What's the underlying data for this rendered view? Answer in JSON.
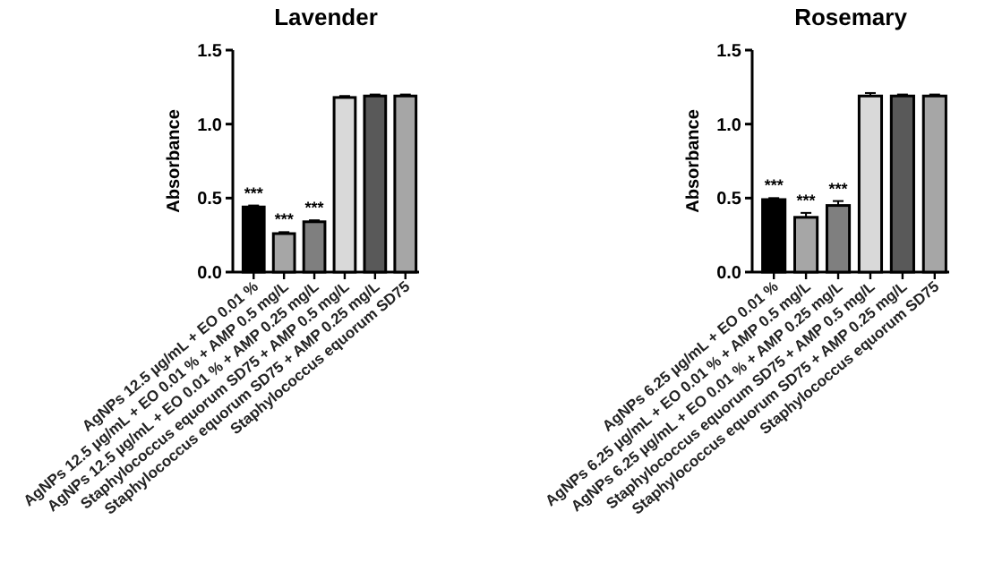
{
  "chart_data": [
    {
      "type": "bar",
      "title": "Lavender",
      "ylabel": "Absorbance",
      "categories": [
        "AgNPs 12.5 µg/mL + EO 0.01 %",
        "AgNPs 12.5 µg/mL + EO 0.01 % + AMP 0.5 mg/L",
        "AgNPs 12.5 µg/mL + EO 0.01 % + AMP 0.25 mg/L",
        "Staphylococcus equorum SD75 + AMP 0.5 mg/L",
        "Staphylococcus equorum SD75 + AMP 0.25 mg/L",
        "Staphylococcus equorum SD75"
      ],
      "values": [
        0.44,
        0.26,
        0.34,
        1.18,
        1.19,
        1.19
      ],
      "errors": [
        0.01,
        0.01,
        0.01,
        0.01,
        0.01,
        0.01
      ],
      "colors": [
        "#000000",
        "#a6a6a6",
        "#7f7f7f",
        "#d9d9d9",
        "#595959",
        "#a6a6a6"
      ],
      "ylim": [
        0,
        1.5
      ],
      "yticks": [
        {
          "value": 0,
          "label": "0.0"
        },
        {
          "value": 0.5,
          "label": "0.5"
        },
        {
          "value": 1,
          "label": "1.0"
        },
        {
          "value": 1.5,
          "label": "1.5"
        }
      ],
      "annotations": [
        {
          "text": "***",
          "x": "AgNPs 12.5 µg/mL + EO 0.01 %",
          "y": 0.45
        },
        {
          "text": "***",
          "x": "AgNPs 12.5 µg/mL + EO 0.01 % + AMP 0.5 mg/L",
          "y": 0.27
        },
        {
          "text": "***",
          "x": "AgNPs 12.5 µg/mL + EO 0.01 % + AMP 0.25 mg/L",
          "y": 0.35
        }
      ]
    },
    {
      "type": "bar",
      "title": "Rosemary",
      "ylabel": "Absorbance",
      "categories": [
        "AgNPs 6.25 µg/mL + EO 0.01 %",
        "AgNPs 6.25 µg/mL + EO 0.01 % + AMP 0.5 mg/L",
        "AgNPs 6.25 µg/mL + EO 0.01 % + AMP 0.25 mg/L",
        "Staphylococcus equorum SD75 + AMP 0.5 mg/L",
        "Staphylococcus equorum SD75 + AMP 0.25 mg/L",
        "Staphylococcus equorum SD75"
      ],
      "values": [
        0.49,
        0.37,
        0.45,
        1.19,
        1.19,
        1.19
      ],
      "errors": [
        0.01,
        0.03,
        0.03,
        0.02,
        0.01,
        0.01
      ],
      "colors": [
        "#000000",
        "#a6a6a6",
        "#7f7f7f",
        "#d9d9d9",
        "#595959",
        "#a6a6a6"
      ],
      "ylim": [
        0,
        1.5
      ],
      "yticks": [
        {
          "value": 0,
          "label": "0.0"
        },
        {
          "value": 0.5,
          "label": "0.5"
        },
        {
          "value": 1,
          "label": "1.0"
        },
        {
          "value": 1.5,
          "label": "1.5"
        }
      ],
      "annotations": [
        {
          "text": "***",
          "x": "AgNPs 6.25 µg/mL + EO 0.01 %",
          "y": 0.5
        },
        {
          "text": "***",
          "x": "AgNPs 6.25 µg/mL + EO 0.01 % + AMP 0.5 mg/L",
          "y": 0.4
        },
        {
          "text": "***",
          "x": "AgNPs 6.25 µg/mL + EO 0.01 % + AMP 0.25 mg/L",
          "y": 0.48
        }
      ]
    }
  ]
}
